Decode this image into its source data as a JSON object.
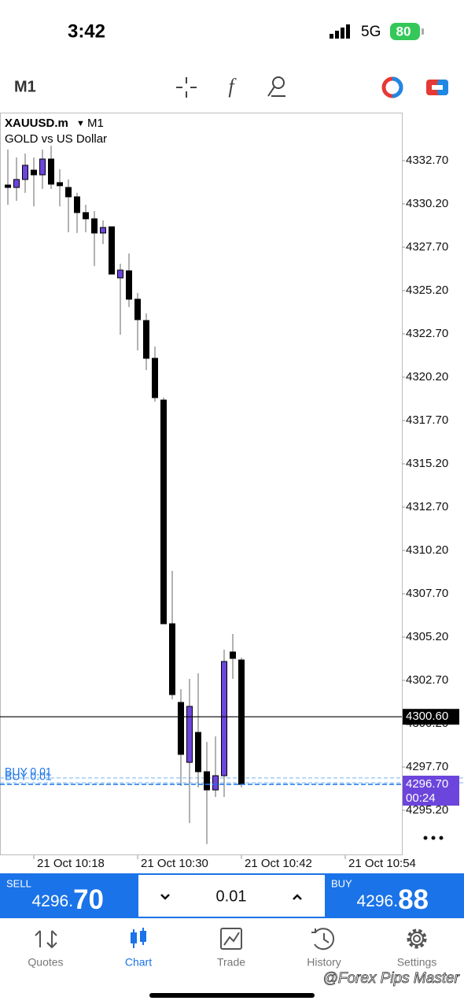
{
  "status_bar": {
    "time": "3:42",
    "network": "5G",
    "battery": "80"
  },
  "toolbar": {
    "timeframe": "M1"
  },
  "chart_data": {
    "type": "candlestick",
    "symbol": "XAUUSD.m",
    "timeframe": "M1",
    "description": "GOLD vs US Dollar",
    "up_color": "#6c45dc",
    "down_color": "#000000",
    "ylim": [
      4292.61,
      4335.47
    ],
    "yticks": [
      {
        "value": 4332.7,
        "label": "4332.70"
      },
      {
        "value": 4330.2,
        "label": "4330.20"
      },
      {
        "value": 4327.7,
        "label": "4327.70"
      },
      {
        "value": 4325.2,
        "label": "4325.20"
      },
      {
        "value": 4322.7,
        "label": "4322.70"
      },
      {
        "value": 4320.2,
        "label": "4320.20"
      },
      {
        "value": 4317.7,
        "label": "4317.70"
      },
      {
        "value": 4315.2,
        "label": "4315.20"
      },
      {
        "value": 4312.7,
        "label": "4312.70"
      },
      {
        "value": 4310.2,
        "label": "4310.20"
      },
      {
        "value": 4307.7,
        "label": "4307.70"
      },
      {
        "value": 4305.2,
        "label": "4305.20"
      },
      {
        "value": 4302.7,
        "label": "4302.70"
      },
      {
        "value": 4300.2,
        "label": "4300.20"
      },
      {
        "value": 4297.7,
        "label": "4297.70"
      },
      {
        "value": 4295.2,
        "label": "4295.20"
      }
    ],
    "time_labels": [
      "21 Oct 10:18",
      "21 Oct 10:30",
      "21 Oct 10:42",
      "21 Oct 10:54"
    ],
    "candles": [
      {
        "open": 4331.29,
        "high": 4333.34,
        "low": 4330.15,
        "close": 4331.15
      },
      {
        "open": 4331.15,
        "high": 4332.88,
        "low": 4330.38,
        "close": 4331.61
      },
      {
        "open": 4331.61,
        "high": 4333.11,
        "low": 4330.84,
        "close": 4332.43
      },
      {
        "open": 4332.15,
        "high": 4332.88,
        "low": 4330.06,
        "close": 4331.88
      },
      {
        "open": 4331.88,
        "high": 4333.34,
        "low": 4331.06,
        "close": 4332.79
      },
      {
        "open": 4332.79,
        "high": 4333.56,
        "low": 4331.06,
        "close": 4331.34
      },
      {
        "open": 4331.43,
        "high": 4332.2,
        "low": 4330.06,
        "close": 4331.25
      },
      {
        "open": 4331.15,
        "high": 4331.61,
        "low": 4328.56,
        "close": 4330.61
      },
      {
        "open": 4330.61,
        "high": 4330.84,
        "low": 4328.52,
        "close": 4329.7
      },
      {
        "open": 4329.7,
        "high": 4330.15,
        "low": 4328.56,
        "close": 4329.34
      },
      {
        "open": 4329.34,
        "high": 4329.79,
        "low": 4326.61,
        "close": 4328.52
      },
      {
        "open": 4328.52,
        "high": 4329.25,
        "low": 4327.88,
        "close": 4328.84
      },
      {
        "open": 4328.88,
        "high": 4328.88,
        "low": 4326.15,
        "close": 4326.15
      },
      {
        "open": 4325.93,
        "high": 4326.75,
        "low": 4322.65,
        "close": 4326.38
      },
      {
        "open": 4326.34,
        "high": 4327.34,
        "low": 4324.25,
        "close": 4324.7
      },
      {
        "open": 4324.7,
        "high": 4325.06,
        "low": 4321.75,
        "close": 4323.52
      },
      {
        "open": 4323.47,
        "high": 4323.88,
        "low": 4320.61,
        "close": 4321.29
      },
      {
        "open": 4321.29,
        "high": 4321.97,
        "low": 4318.79,
        "close": 4319.02
      },
      {
        "open": 4318.88,
        "high": 4319.02,
        "low": 4305.97,
        "close": 4305.97
      },
      {
        "open": 4305.97,
        "high": 4309.02,
        "low": 4301.61,
        "close": 4301.88
      },
      {
        "open": 4301.43,
        "high": 4302.2,
        "low": 4296.61,
        "close": 4298.43
      },
      {
        "open": 4297.97,
        "high": 4302.79,
        "low": 4294.47,
        "close": 4301.2
      },
      {
        "open": 4299.7,
        "high": 4303.11,
        "low": 4296.52,
        "close": 4297.43
      },
      {
        "open": 4297.43,
        "high": 4299.15,
        "low": 4293.25,
        "close": 4296.38
      },
      {
        "open": 4296.38,
        "high": 4299.47,
        "low": 4295.97,
        "close": 4297.2
      },
      {
        "open": 4297.2,
        "high": 4304.47,
        "low": 4295.97,
        "close": 4303.79
      },
      {
        "open": 4304.34,
        "high": 4305.38,
        "low": 4302.79,
        "close": 4303.97
      },
      {
        "open": 4303.88,
        "high": 4304.02,
        "low": 4296.52,
        "close": 4296.7
      }
    ],
    "last_price": {
      "value": 4300.6,
      "label": "4300.60"
    },
    "bid": {
      "value": 4296.7,
      "label": "4296.70"
    },
    "bar_timer": "00:24",
    "orders": [
      {
        "label": "BUY 0.01",
        "price": 4297.07
      },
      {
        "label": "BUY 0.01",
        "price": 4296.79
      }
    ]
  },
  "trade_bar": {
    "sell": {
      "label": "SELL",
      "price_small": "4296.",
      "price_big": "70"
    },
    "volume": "0.01",
    "buy": {
      "label": "BUY",
      "price_small": "4296.",
      "price_big": "88"
    }
  },
  "tabs": [
    "Quotes",
    "Chart",
    "Trade",
    "History",
    "Settings"
  ],
  "watermark": "@Forex Pips Master"
}
